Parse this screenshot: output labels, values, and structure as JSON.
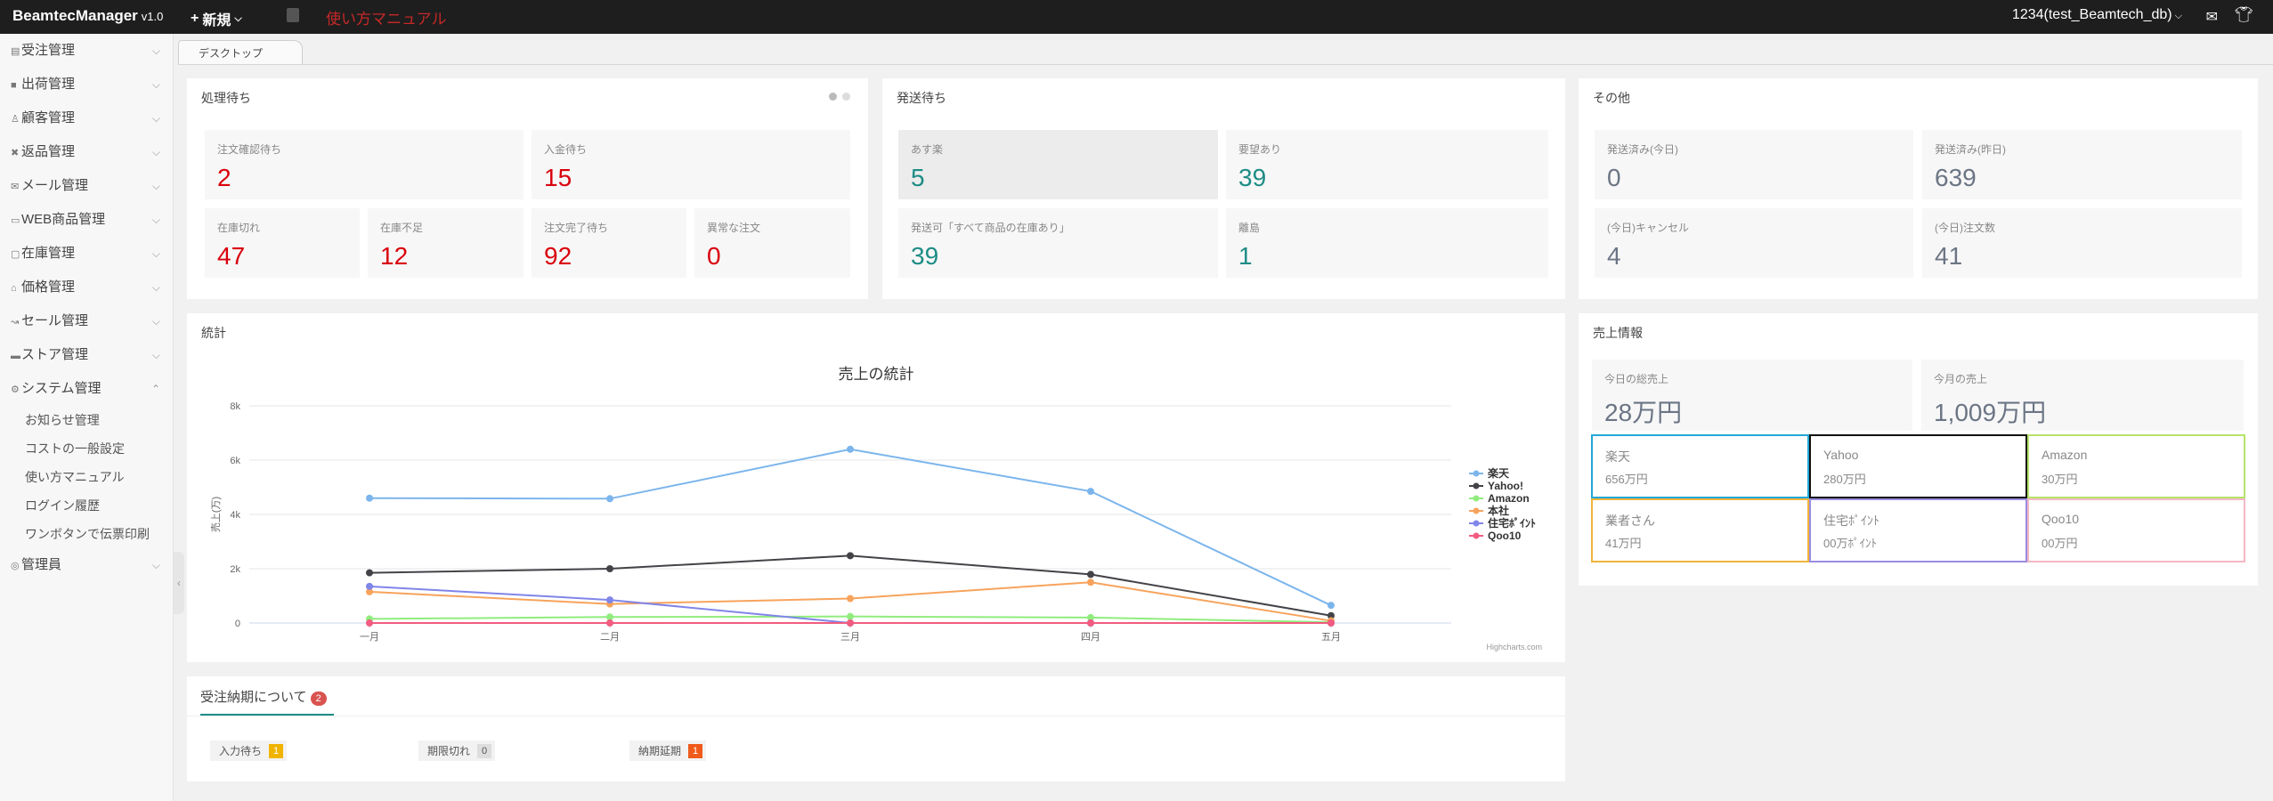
{
  "topbar": {
    "brand": "BeamtecManager",
    "version": "v1.0",
    "new_label": "新規",
    "manual_label": "使い方マニュアル",
    "user": "1234(test_Beamtech_db)"
  },
  "sidebar": {
    "items": [
      {
        "label": "受注管理"
      },
      {
        "label": "出荷管理"
      },
      {
        "label": "顧客管理"
      },
      {
        "label": "返品管理"
      },
      {
        "label": "メール管理"
      },
      {
        "label": "WEB商品管理"
      },
      {
        "label": "在庫管理"
      },
      {
        "label": "価格管理"
      },
      {
        "label": "セール管理"
      },
      {
        "label": "ストア管理"
      },
      {
        "label": "システム管理"
      }
    ],
    "sub_items": [
      "お知らせ管理",
      "コストの一般設定",
      "使い方マニュアル",
      "ログイン履歴",
      "ワンボタンで伝票印刷"
    ],
    "last_item": "管理員"
  },
  "tab": "デスクトップ",
  "pending": {
    "title": "処理待ち",
    "stats": [
      {
        "label": "注文確認待ち",
        "value": "2"
      },
      {
        "label": "入金待ち",
        "value": "15"
      },
      {
        "label": "在庫切れ",
        "value": "47"
      },
      {
        "label": "在庫不足",
        "value": "12"
      },
      {
        "label": "注文完了待ち",
        "value": "92"
      },
      {
        "label": "異常な注文",
        "value": "0"
      }
    ]
  },
  "shipping": {
    "title": "発送待ち",
    "stats": [
      {
        "label": "あす楽",
        "value": "5"
      },
      {
        "label": "要望あり",
        "value": "39"
      },
      {
        "label": "発送可「すべて商品の在庫あり」",
        "value": "39"
      },
      {
        "label": "離島",
        "value": "1"
      }
    ]
  },
  "other": {
    "title": "その他",
    "stats": [
      {
        "label": "発送済み(今日)",
        "value": "0"
      },
      {
        "label": "発送済み(昨日)",
        "value": "639"
      },
      {
        "label": "(今日)キャンセル",
        "value": "4"
      },
      {
        "label": "(今日)注文数",
        "value": "41"
      }
    ]
  },
  "stats_panel": {
    "title": "統計"
  },
  "sales_info": {
    "title": "売上情報",
    "today_label": "今日の総売上",
    "today_value": "28万円",
    "month_label": "今月の売上",
    "month_value": "1,009万円",
    "boxes": [
      {
        "label": "楽天",
        "value": "656万円",
        "color": "#22a7d6"
      },
      {
        "label": "Yahoo",
        "value": "280万円",
        "color": "#111111"
      },
      {
        "label": "Amazon",
        "value": "30万円",
        "color": "#b6e36a"
      },
      {
        "label": "業者さん",
        "value": "41万円",
        "color": "#f0b43a"
      },
      {
        "label": "住宅ﾎﾟｲﾝﾄ",
        "value": "00万ﾎﾟｲﾝﾄ",
        "color": "#9a8ce0"
      },
      {
        "label": "Qoo10",
        "value": "00万円",
        "color": "#f5b8c6"
      }
    ]
  },
  "delivery": {
    "title": "受注納期について",
    "badge": "2",
    "pills": [
      {
        "label": "入力待ち",
        "count": "1",
        "color": "#f0b400"
      },
      {
        "label": "期限切れ",
        "count": "0",
        "color": "#dddddd"
      },
      {
        "label": "納期延期",
        "count": "1",
        "color": "#f05a1a"
      }
    ]
  },
  "chart_data": {
    "type": "line",
    "title": "売上の統計",
    "ylabel": "売上(万)",
    "categories": [
      "一月",
      "二月",
      "三月",
      "四月",
      "五月"
    ],
    "ylim": [
      0,
      8000
    ],
    "yticks": [
      "0",
      "2k",
      "4k",
      "6k",
      "8k"
    ],
    "series": [
      {
        "name": "楽天",
        "color": "#7cb5ec",
        "values": [
          4600,
          4580,
          6400,
          4850,
          650
        ]
      },
      {
        "name": "Yahoo!",
        "color": "#434348",
        "values": [
          1850,
          2000,
          2480,
          1790,
          270
        ]
      },
      {
        "name": "Amazon",
        "color": "#90ed7d",
        "values": [
          150,
          220,
          240,
          200,
          30
        ]
      },
      {
        "name": "本社",
        "color": "#f7a35c",
        "values": [
          1150,
          700,
          900,
          1500,
          80
        ]
      },
      {
        "name": "住宅ﾎﾟｲﾝﾄ",
        "color": "#8085e9",
        "values": [
          1350,
          850,
          0,
          0,
          0
        ]
      },
      {
        "name": "Qoo10",
        "color": "#f15c80",
        "values": [
          0,
          0,
          0,
          0,
          0
        ]
      }
    ],
    "credit": "Highcharts.com",
    "legend": "right"
  }
}
